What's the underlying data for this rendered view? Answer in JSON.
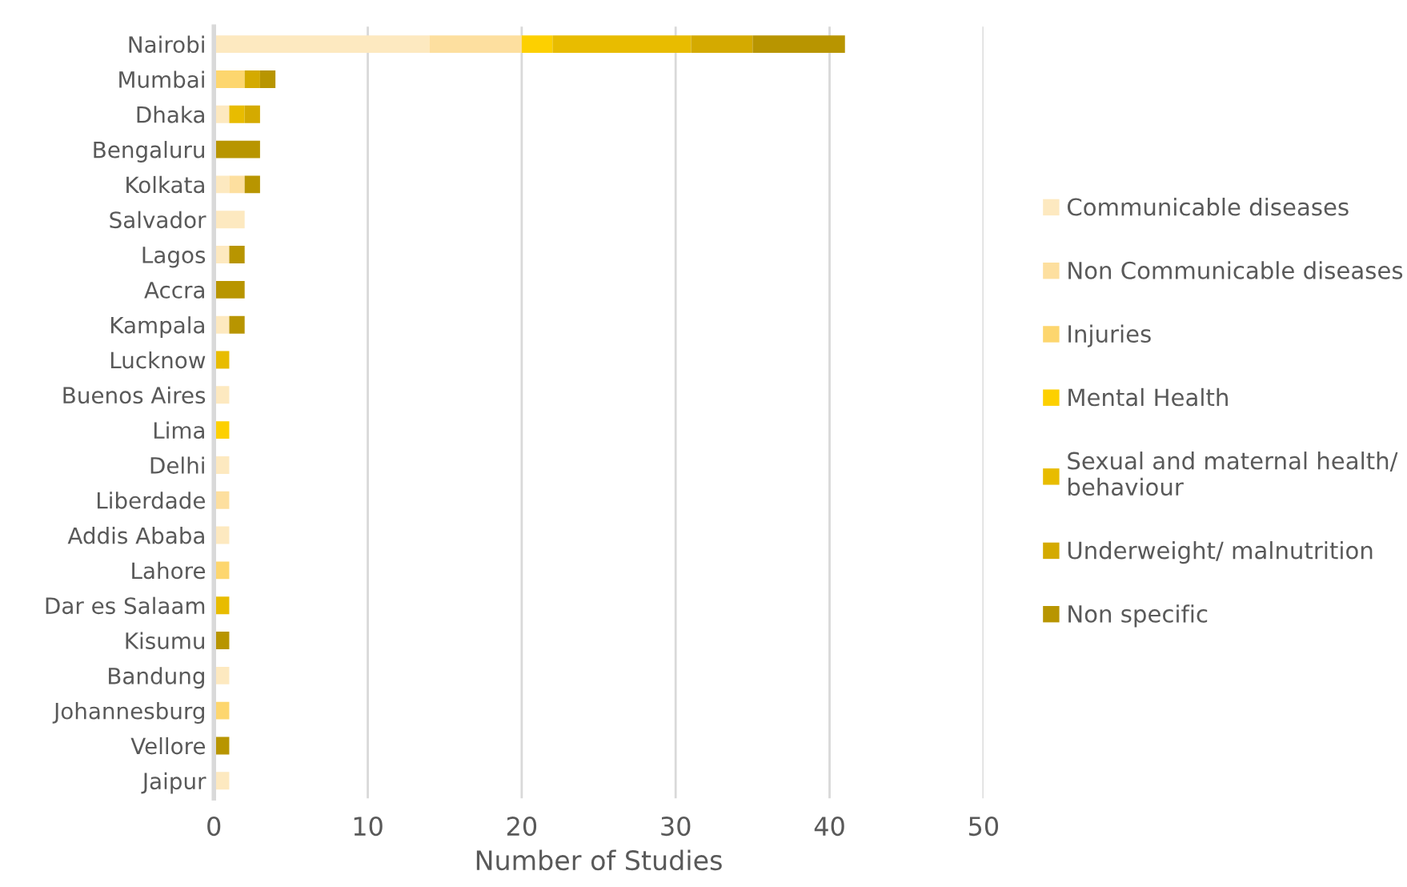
{
  "chart_data": {
    "type": "bar",
    "orientation": "horizontal",
    "stacked": true,
    "xlabel": "Number of Studies",
    "categories": [
      "Nairobi",
      "Mumbai",
      "Dhaka",
      "Bengaluru",
      "Kolkata",
      "Salvador",
      "Lagos",
      "Accra",
      "Kampala",
      "Lucknow",
      "Buenos Aires",
      "Lima",
      "Delhi",
      "Liberdade",
      "Addis Ababa",
      "Lahore",
      "Dar es Salaam",
      "Kisumu",
      "Bandung",
      "Johannesburg",
      "Vellore",
      "Jaipur"
    ],
    "series": [
      {
        "name": "Communicable diseases",
        "color": "#fde9c0",
        "values": [
          14,
          0,
          1,
          0,
          1,
          2,
          1,
          0,
          1,
          0,
          1,
          0,
          1,
          0,
          1,
          0,
          0,
          0,
          1,
          0,
          0,
          1
        ]
      },
      {
        "name": "Non Communicable diseases",
        "color": "#fddf9f",
        "values": [
          6,
          0,
          0,
          0,
          1,
          0,
          0,
          0,
          0,
          0,
          0,
          0,
          0,
          1,
          0,
          0,
          0,
          0,
          0,
          0,
          0,
          0
        ]
      },
      {
        "name": "Injuries",
        "color": "#fdd66e",
        "values": [
          0,
          2,
          0,
          0,
          0,
          0,
          0,
          0,
          0,
          0,
          0,
          0,
          0,
          0,
          0,
          1,
          0,
          0,
          0,
          1,
          0,
          0
        ]
      },
      {
        "name": "Mental Health",
        "color": "#fdd000",
        "values": [
          2,
          0,
          0,
          0,
          0,
          0,
          0,
          0,
          0,
          0,
          0,
          1,
          0,
          0,
          0,
          0,
          0,
          0,
          0,
          0,
          0,
          0
        ]
      },
      {
        "name": "Sexual and maternal health/ behaviour",
        "color": "#e8bc00",
        "values": [
          9,
          0,
          1,
          0,
          0,
          0,
          0,
          0,
          0,
          1,
          0,
          0,
          0,
          0,
          0,
          0,
          1,
          0,
          0,
          0,
          0,
          0
        ]
      },
      {
        "name": "Underweight/ malnutrition",
        "color": "#d4aa00",
        "values": [
          4,
          1,
          1,
          0,
          0,
          0,
          0,
          0,
          0,
          0,
          0,
          0,
          0,
          0,
          0,
          0,
          0,
          0,
          0,
          0,
          0,
          0
        ]
      },
      {
        "name": "Non specific",
        "color": "#b89500",
        "values": [
          6,
          1,
          0,
          3,
          1,
          0,
          1,
          2,
          1,
          0,
          0,
          0,
          0,
          0,
          0,
          0,
          0,
          1,
          0,
          0,
          1,
          0
        ]
      }
    ],
    "xlim": [
      0,
      50
    ],
    "xticks": [
      0,
      10,
      20,
      30,
      40,
      50
    ],
    "grid": "x",
    "legend": "right"
  }
}
